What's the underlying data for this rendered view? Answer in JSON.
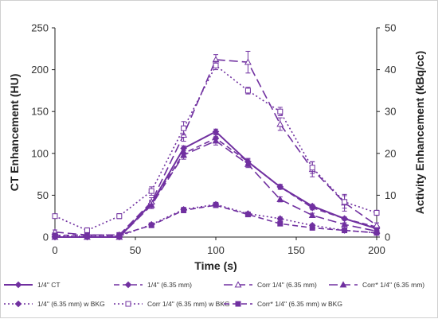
{
  "chart_data": {
    "type": "line",
    "xlabel": "Time (s)",
    "ylabel_left": "CT Enhancement (HU)",
    "ylabel_right": "Activity Enhancement (kBq/cc)",
    "xlim": [
      0,
      200
    ],
    "ylim_left": [
      0,
      250
    ],
    "ylim_right": [
      0,
      50
    ],
    "x_ticks": [
      0,
      50,
      100,
      150,
      200
    ],
    "y_left_ticks": [
      0,
      50,
      100,
      150,
      200,
      250
    ],
    "y_right_ticks": [
      0,
      10,
      20,
      30,
      40,
      50
    ],
    "grid": false,
    "legend_position": "bottom",
    "color": "#7030a0",
    "x": [
      0,
      20,
      40,
      60,
      80,
      100,
      120,
      140,
      160,
      180,
      200
    ],
    "series": [
      {
        "name": "1/4\" CT",
        "axis": "left",
        "style": "solid",
        "marker": "diamond-filled",
        "values": [
          0,
          0,
          0,
          40,
          106,
          126,
          90,
          60,
          37,
          22,
          10
        ],
        "errors": [
          1,
          1,
          1,
          3,
          3,
          3,
          3,
          2,
          2,
          1,
          1
        ]
      },
      {
        "name": "1/4\" (6.35 mm)",
        "axis": "right",
        "style": "dash",
        "marker": "diamond-filled",
        "values": [
          0,
          0.1,
          0.2,
          8,
          20,
          23.6,
          18,
          12,
          7,
          4.4,
          2.4
        ],
        "errors": [
          0.3,
          0.3,
          0.3,
          0.8,
          1,
          0.8,
          0.8,
          0.6,
          0.5,
          0.4,
          0.3
        ]
      },
      {
        "name": "Corr 1/4\" (6.35 mm)",
        "axis": "right",
        "style": "longdash",
        "marker": "triangle-open",
        "values": [
          1.2,
          0.5,
          0.5,
          8.4,
          24.4,
          42.4,
          41.8,
          27,
          16.2,
          8.2,
          2.8
        ],
        "errors": [
          0.5,
          0.5,
          0.5,
          1,
          1.5,
          1.2,
          2.6,
          1.5,
          1.8,
          2,
          0.6
        ]
      },
      {
        "name": "Corr* 1/4\" (6.35 mm)",
        "axis": "right",
        "style": "longdash",
        "marker": "triangle-filled",
        "values": [
          0,
          0,
          0,
          7.6,
          19.6,
          23,
          17.4,
          9,
          5.2,
          3,
          1.4
        ],
        "errors": [
          0.3,
          0.3,
          0.3,
          0.8,
          1,
          1,
          0.8,
          0.6,
          0.5,
          0.4,
          0.3
        ]
      },
      {
        "name": "1/4\" (6.35 mm) w BKG",
        "axis": "right",
        "style": "dot",
        "marker": "diamond-filled",
        "values": [
          0.2,
          0.2,
          0.2,
          3,
          6.6,
          7.8,
          5.6,
          4.4,
          2.8,
          1.6,
          1
        ],
        "errors": [
          0.3,
          0.3,
          0.3,
          0.4,
          0.5,
          0.5,
          0.4,
          0.4,
          0.3,
          0.3,
          0.3
        ]
      },
      {
        "name": "Corr 1/4\" (6.35 mm) w BKG",
        "axis": "right",
        "style": "dot",
        "marker": "square-open",
        "values": [
          5,
          1.6,
          5,
          11,
          26,
          41,
          35,
          30,
          16.6,
          8.4,
          5.8
        ],
        "errors": [
          0.5,
          0.6,
          0.6,
          1,
          1.6,
          1,
          0.8,
          1,
          1.4,
          1.5,
          0.6
        ]
      },
      {
        "name": "Corr* 1/4\" (6.35 mm) w BKG",
        "axis": "right",
        "style": "dash",
        "marker": "square-filled",
        "values": [
          0.4,
          0.5,
          0.5,
          2.8,
          6.4,
          7.6,
          5.4,
          3.2,
          2.2,
          1.6,
          1
        ],
        "errors": [
          0.3,
          0.3,
          0.3,
          0.5,
          0.6,
          0.5,
          0.4,
          0.4,
          0.3,
          0.3,
          0.3
        ]
      }
    ]
  }
}
